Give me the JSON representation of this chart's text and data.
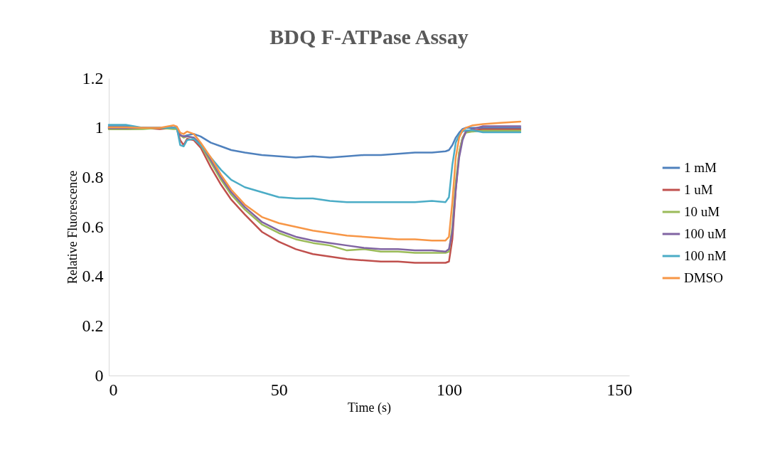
{
  "chart_data": {
    "type": "line",
    "title": "BDQ F-ATPase Assay",
    "xlabel": "Time (s)",
    "ylabel": "Relative Fluorescence",
    "x": [
      0,
      5,
      10,
      15,
      19,
      20,
      21,
      22,
      23,
      25,
      27,
      30,
      33,
      36,
      40,
      45,
      50,
      55,
      60,
      65,
      70,
      75,
      80,
      85,
      90,
      95,
      99,
      100,
      101,
      102,
      103,
      104,
      105,
      107,
      110,
      115,
      121
    ],
    "series": [
      {
        "name": "1 mM",
        "color": "#4f81bd",
        "values": [
          1.006,
          1.006,
          1,
          1,
          1,
          1,
          0.97,
          0.965,
          0.97,
          0.975,
          0.965,
          0.94,
          0.925,
          0.91,
          0.9,
          0.89,
          0.885,
          0.88,
          0.885,
          0.88,
          0.885,
          0.89,
          0.89,
          0.895,
          0.9,
          0.9,
          0.905,
          0.91,
          0.93,
          0.96,
          0.98,
          0.995,
          1,
          1,
          1,
          1,
          1
        ]
      },
      {
        "name": "1 uM",
        "color": "#c0504d",
        "values": [
          1,
          0.995,
          1,
          0.995,
          1,
          0.995,
          0.95,
          0.93,
          0.955,
          0.95,
          0.92,
          0.84,
          0.77,
          0.71,
          0.65,
          0.58,
          0.54,
          0.51,
          0.49,
          0.48,
          0.47,
          0.465,
          0.46,
          0.46,
          0.455,
          0.455,
          0.455,
          0.46,
          0.55,
          0.75,
          0.9,
          0.96,
          0.985,
          0.99,
          0.994,
          0.994,
          0.994
        ]
      },
      {
        "name": "10 uM",
        "color": "#9bbb59",
        "values": [
          0.994,
          0.994,
          0.995,
          1,
          0.995,
          0.995,
          0.97,
          0.96,
          0.965,
          0.96,
          0.93,
          0.86,
          0.79,
          0.73,
          0.67,
          0.61,
          0.575,
          0.55,
          0.535,
          0.525,
          0.505,
          0.51,
          0.5,
          0.5,
          0.495,
          0.495,
          0.495,
          0.5,
          0.6,
          0.78,
          0.9,
          0.96,
          0.98,
          0.985,
          0.988,
          0.988,
          0.988
        ]
      },
      {
        "name": "100 uM",
        "color": "#8064a2",
        "values": [
          0.998,
          0.998,
          1,
          1,
          1,
          1,
          0.97,
          0.965,
          0.965,
          0.96,
          0.935,
          0.87,
          0.8,
          0.74,
          0.68,
          0.62,
          0.585,
          0.56,
          0.545,
          0.535,
          0.525,
          0.515,
          0.51,
          0.51,
          0.505,
          0.505,
          0.5,
          0.51,
          0.58,
          0.75,
          0.88,
          0.95,
          0.985,
          0.995,
          1.006,
          1.006,
          1.006
        ]
      },
      {
        "name": "100 nM",
        "color": "#4bacc6",
        "values": [
          1.012,
          1.012,
          1,
          1,
          1,
          1,
          0.93,
          0.925,
          0.95,
          0.955,
          0.93,
          0.88,
          0.83,
          0.79,
          0.76,
          0.74,
          0.72,
          0.715,
          0.715,
          0.705,
          0.7,
          0.7,
          0.7,
          0.7,
          0.7,
          0.705,
          0.7,
          0.72,
          0.85,
          0.94,
          0.97,
          0.985,
          0.99,
          0.99,
          0.982,
          0.982,
          0.982
        ]
      },
      {
        "name": "DMSO",
        "color": "#f79646",
        "values": [
          1.002,
          1.002,
          1,
          1,
          1.01,
          1.005,
          0.98,
          0.975,
          0.985,
          0.975,
          0.94,
          0.88,
          0.81,
          0.75,
          0.69,
          0.64,
          0.615,
          0.6,
          0.585,
          0.575,
          0.565,
          0.56,
          0.555,
          0.55,
          0.55,
          0.545,
          0.545,
          0.56,
          0.7,
          0.88,
          0.96,
          0.99,
          1,
          1.01,
          1.015,
          1.02,
          1.025
        ]
      }
    ],
    "xlim": [
      0,
      153
    ],
    "xticks": [
      0,
      50,
      100,
      150
    ],
    "ylim": [
      0,
      1.2
    ],
    "yticks": [
      0,
      0.2,
      0.4,
      0.6,
      0.8,
      1,
      1.2
    ],
    "grid": false,
    "legend": "right",
    "marker": "none",
    "line_style": "solid"
  }
}
